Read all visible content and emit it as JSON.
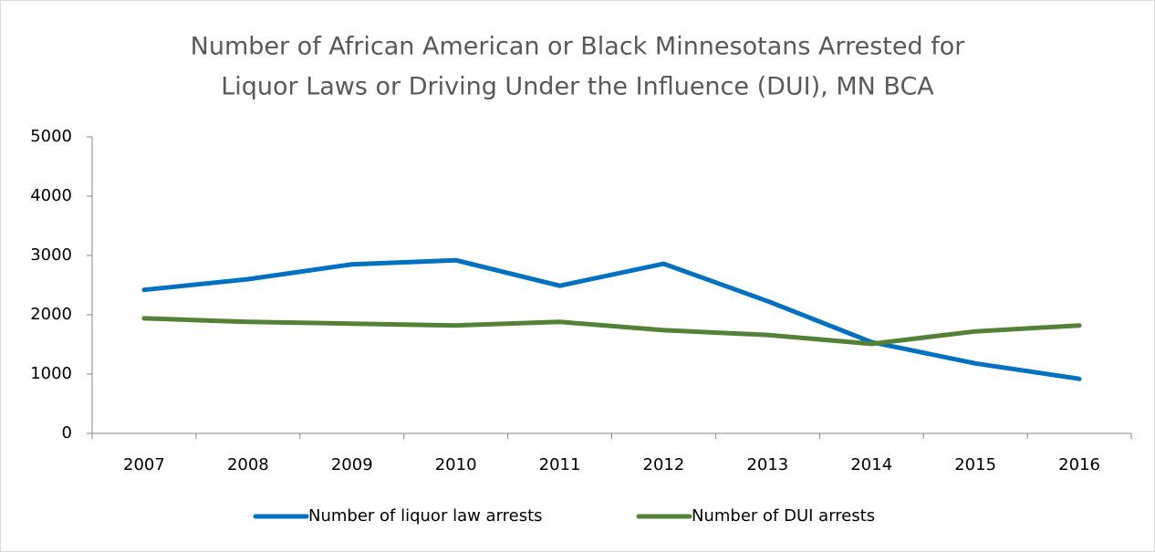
{
  "chart_data": {
    "type": "line",
    "title": [
      "Number of African American or Black Minnesotans Arrested for",
      "Liquor Laws or Driving Under the Influence (DUI), MN BCA"
    ],
    "categories": [
      "2007",
      "2008",
      "2009",
      "2010",
      "2011",
      "2012",
      "2013",
      "2014",
      "2015",
      "2016"
    ],
    "series": [
      {
        "name": "Number of liquor law arrests",
        "color": "#0070c0",
        "values": [
          2420,
          2600,
          2850,
          2920,
          2490,
          2860,
          2230,
          1540,
          1180,
          920
        ]
      },
      {
        "name": "Number of DUI arrests",
        "color": "#538135",
        "values": [
          1940,
          1880,
          1850,
          1820,
          1880,
          1740,
          1660,
          1510,
          1720,
          1820
        ]
      }
    ],
    "ylim": [
      0,
      5000
    ],
    "yticks": [
      0,
      1000,
      2000,
      3000,
      4000,
      5000
    ],
    "grid": false,
    "legend": "bottom"
  }
}
